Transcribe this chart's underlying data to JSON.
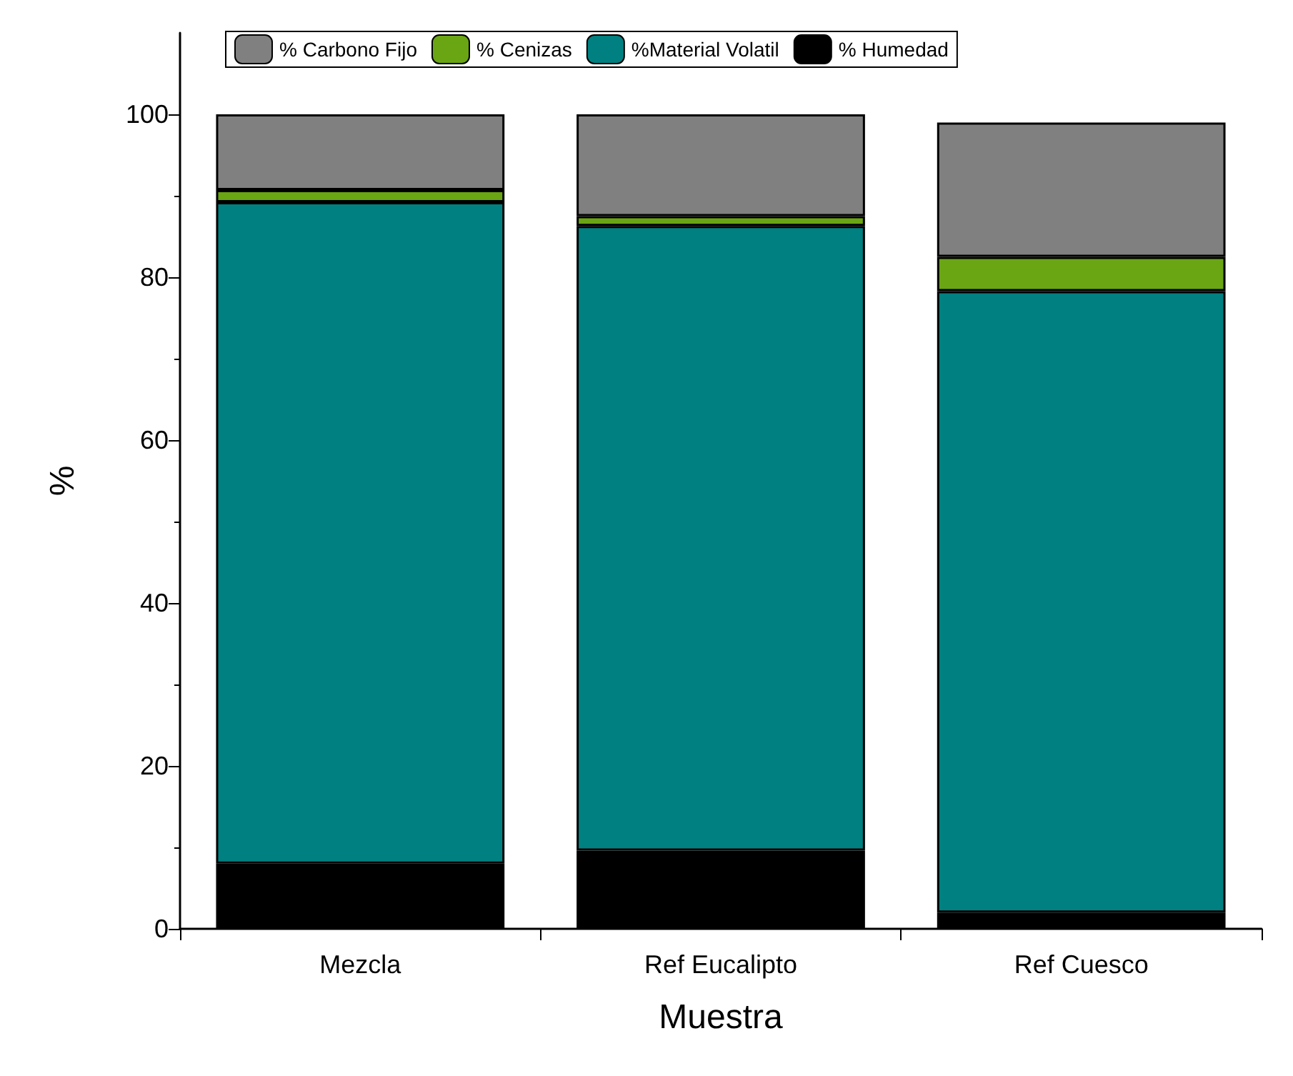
{
  "chart_data": {
    "type": "bar",
    "stacked": true,
    "xlabel": "Muestra",
    "ylabel": "%",
    "categories": [
      "Mezcla",
      "Ref Eucalipto",
      "Ref Cuesco"
    ],
    "series": [
      {
        "name": "% Humedad",
        "color": "#000000",
        "values": [
          8.0,
          9.6,
          2.0
        ]
      },
      {
        "name": "%Material Volatil",
        "color": "#008080",
        "values": [
          81.2,
          76.7,
          76.3
        ]
      },
      {
        "name": "% Cenizas",
        "color": "#6aa514",
        "values": [
          1.5,
          1.2,
          4.2
        ]
      },
      {
        "name": "% Carbono Fijo",
        "color": "#808080",
        "values": [
          9.3,
          12.5,
          16.5
        ]
      }
    ],
    "ylim": [
      0,
      110
    ],
    "yticks": [
      0,
      20,
      40,
      60,
      80,
      100
    ],
    "grid": false,
    "legend": "top"
  }
}
